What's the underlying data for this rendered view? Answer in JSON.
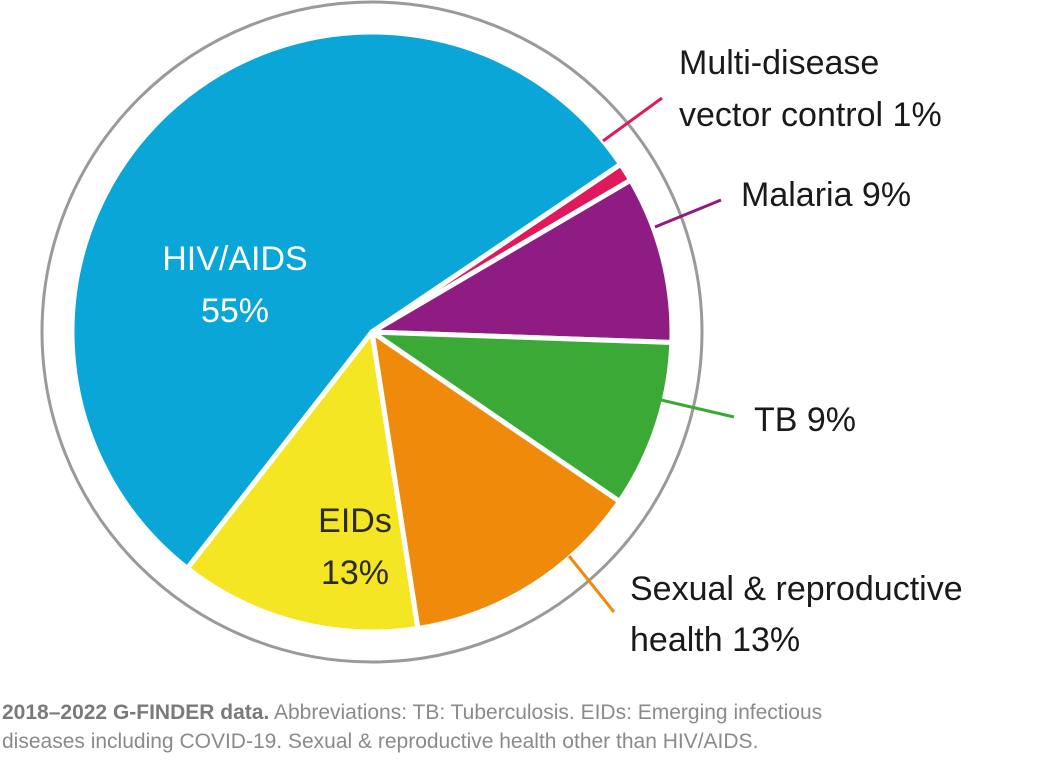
{
  "chart_data": {
    "type": "pie",
    "title": "",
    "slices": [
      {
        "label": "HIV/AIDS",
        "value": 55,
        "value_label": "55%",
        "color": "#0aa6d8",
        "label_position": "inside"
      },
      {
        "label": "Multi-disease vector control",
        "value": 1,
        "value_label": "1%",
        "color": "#e0185c",
        "label_position": "outside"
      },
      {
        "label": "Malaria",
        "value": 9,
        "value_label": "9%",
        "color": "#8f1c82",
        "label_position": "outside"
      },
      {
        "label": "TB",
        "value": 9,
        "value_label": "9%",
        "color": "#3aa935",
        "label_position": "outside"
      },
      {
        "label": "Sexual & reproductive health",
        "value": 13,
        "value_label": "13%",
        "color": "#f08a0b",
        "label_position": "outside"
      },
      {
        "label": "EIDs",
        "value": 13,
        "value_label": "13%",
        "color": "#f5e623",
        "label_position": "inside"
      }
    ],
    "ring_color": "#9a9a9a"
  },
  "labels": {
    "hiv_line1": "HIV/AIDS",
    "hiv_line2": "55%",
    "eids_line1": "EIDs",
    "eids_line2": "13%",
    "vector_line1": "Multi-disease",
    "vector_line2": "vector control 1%",
    "malaria": "Malaria 9%",
    "tb": "TB 9%",
    "srh_line1": "Sexual & reproductive",
    "srh_line2": "health 13%"
  },
  "footnote": {
    "bold": "2018–2022 G-FINDER data.",
    "line1_rest": " Abbreviations: TB: Tuberculosis. EIDs: Emerging infectious",
    "line2": "diseases including COVID-19. Sexual & reproductive health other than HIV/AIDS."
  }
}
